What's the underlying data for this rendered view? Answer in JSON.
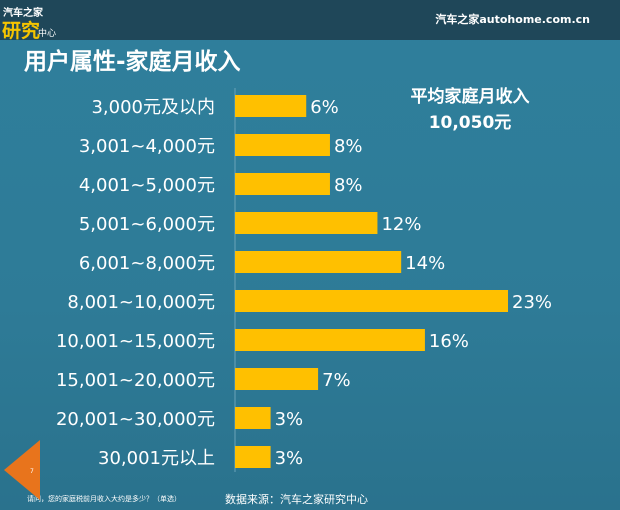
{
  "header": {
    "logo_top": "汽车之家",
    "logo_main": "研究",
    "logo_sub": "中心",
    "site": "汽车之家autohome.com.cn"
  },
  "title": "用户属性-家庭月收入",
  "average": {
    "label": "平均家庭月收入",
    "value": "10,050元"
  },
  "footer": {
    "question": "请问，您的家庭税前月收入大约是多少？（单选）",
    "source": "数据来源：汽车之家研究中心",
    "page": "7"
  },
  "colors": {
    "bar": "#ffc000",
    "header": "#1f4759",
    "background": "#2e7b97",
    "page_marker": "#e8741c"
  },
  "chart_data": {
    "type": "bar",
    "orientation": "horizontal",
    "categories": [
      "3,000元及以内",
      "3,001~4,000元",
      "4,001~5,000元",
      "5,001~6,000元",
      "6,001~8,000元",
      "8,001~10,000元",
      "10,001~15,000元",
      "15,001~20,000元",
      "20,001~30,000元",
      "30,001元以上"
    ],
    "values": [
      6,
      8,
      8,
      12,
      14,
      23,
      16,
      7,
      3,
      3
    ],
    "data_labels": [
      "6%",
      "8%",
      "8%",
      "12%",
      "14%",
      "23%",
      "16%",
      "7%",
      "3%",
      "3%"
    ],
    "unit": "%",
    "grid": false
  }
}
